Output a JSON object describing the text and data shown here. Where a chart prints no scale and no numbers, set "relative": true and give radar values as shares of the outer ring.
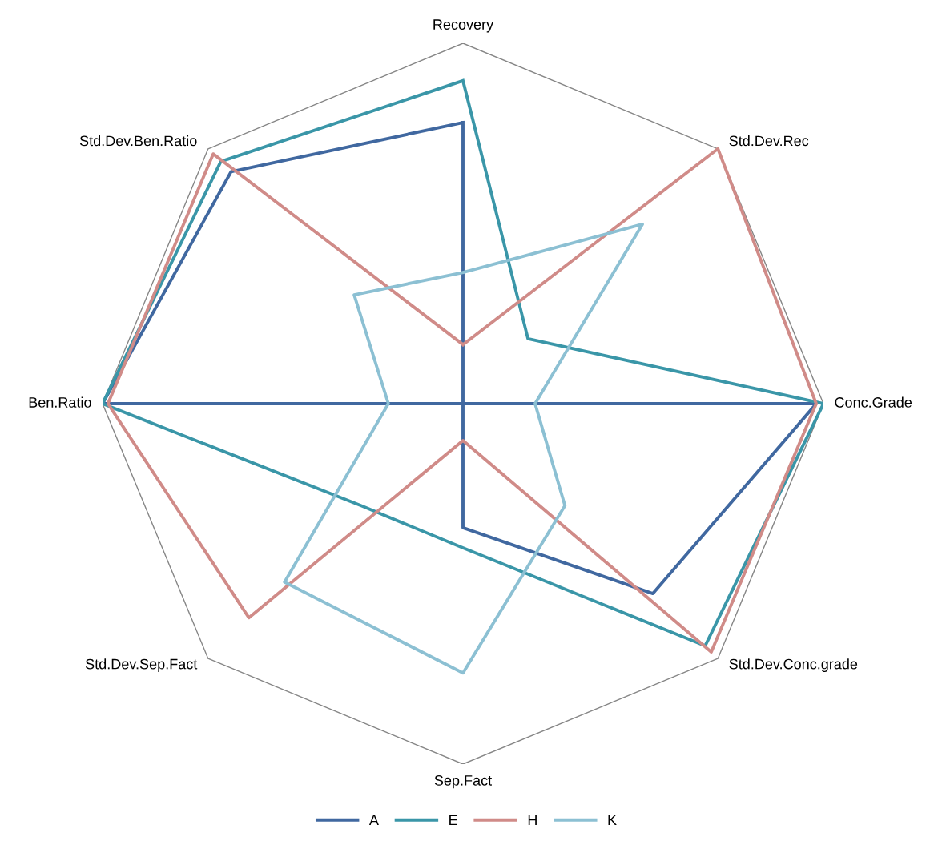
{
  "chart_data": {
    "type": "radar",
    "relative": true,
    "categories": [
      "Recovery",
      "Std.Dev.Rec",
      "Conc.Grade",
      "Std.Dev.Conc.grade",
      "Sep.Fact",
      "Std.Dev.Sep.Fact",
      "Ben.Ratio",
      "Std.Dev.Ben.Ratio"
    ],
    "series": [
      {
        "name": "A",
        "color": "#4068a0",
        "values": [
          0.78,
          0,
          0.98,
          0.745,
          0.344,
          0,
          1.0,
          0.91
        ]
      },
      {
        "name": "E",
        "color": "#3a96a8",
        "values": [
          0.896,
          0.255,
          1.0,
          0.95,
          0.4,
          0.4,
          1.0,
          0.95
        ]
      },
      {
        "name": "H",
        "color": "#d08b88",
        "values": [
          0.164,
          1.0,
          0.98,
          0.974,
          0.102,
          0.84,
          0.985,
          0.98
        ]
      },
      {
        "name": "K",
        "color": "#8cc0d3",
        "values": [
          0.364,
          0.704,
          0.2,
          0.4,
          0.747,
          0.7,
          0.207,
          0.427
        ]
      }
    ],
    "legend": "bottom"
  }
}
